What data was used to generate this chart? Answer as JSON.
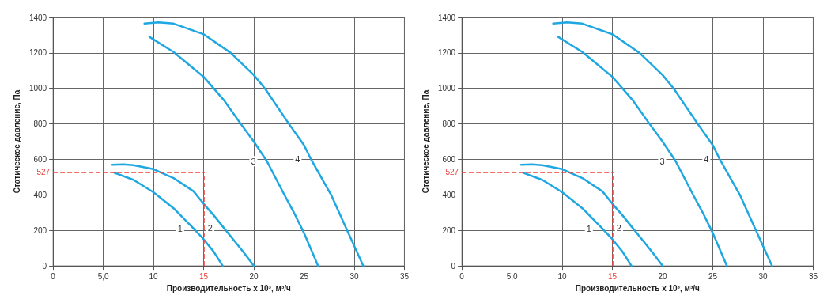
{
  "chart_data": [
    {
      "type": "line",
      "xlabel": "Производительность x 10³, м³/ч",
      "ylabel": "Статическое давление, Па",
      "xlim": [
        0,
        35
      ],
      "ylim": [
        0,
        1400
      ],
      "xticks": [
        0,
        {
          "value": 5,
          "label": "5,0"
        },
        10,
        15,
        20,
        25,
        30,
        35
      ],
      "yticks": [
        0,
        200,
        400,
        600,
        800,
        1000,
        1200,
        1400
      ],
      "grid": true,
      "legend": false,
      "marker": "none",
      "line_style": "solid",
      "series": [
        {
          "name": "1",
          "color": "#1ea7e1",
          "x": [
            6.1,
            8,
            10,
            12,
            14,
            15,
            16,
            16.9
          ],
          "values": [
            525,
            485,
            415,
            325,
            210,
            150,
            80,
            0
          ]
        },
        {
          "name": "2",
          "color": "#1ea7e1",
          "x": [
            5.9,
            7,
            8,
            10,
            12,
            14,
            15,
            16,
            17,
            18,
            19,
            20
          ],
          "values": [
            570,
            572,
            568,
            545,
            495,
            420,
            350,
            285,
            215,
            145,
            75,
            0
          ]
        },
        {
          "name": "3",
          "color": "#1ea7e1",
          "x": [
            9.6,
            12,
            15,
            17,
            18.7,
            20,
            21.3,
            23,
            24,
            25,
            26.4
          ],
          "values": [
            1290,
            1205,
            1065,
            935,
            800,
            700,
            590,
            405,
            300,
            185,
            0
          ]
        },
        {
          "name": "4",
          "color": "#1ea7e1",
          "x": [
            9.1,
            10.5,
            12,
            15,
            17.7,
            20,
            21.1,
            23.5,
            25,
            25.7,
            27.7,
            29.3,
            30.9
          ],
          "values": [
            1365,
            1372,
            1365,
            1305,
            1200,
            1075,
            1000,
            800,
            680,
            600,
            400,
            200,
            0
          ]
        }
      ],
      "ref_lines": [
        {
          "axis": "y",
          "value": 527,
          "label": "527",
          "color": "#e8413c",
          "line_style": "dashed"
        },
        {
          "axis": "x",
          "value": 15,
          "color": "#e8413c",
          "line_style": "dashed"
        }
      ]
    },
    {
      "type": "line",
      "xlabel": "Производительность x 10³, м³/ч",
      "ylabel": "Статическое давление, Па",
      "xlim": [
        0,
        35
      ],
      "ylim": [
        0,
        1400
      ],
      "xticks": [
        0,
        {
          "value": 5,
          "label": "5,0"
        },
        10,
        15,
        20,
        25,
        30,
        35
      ],
      "yticks": [
        0,
        200,
        400,
        600,
        800,
        1000,
        1200,
        1400
      ],
      "grid": true,
      "legend": false,
      "marker": "none",
      "line_style": "solid",
      "series": [
        {
          "name": "1",
          "color": "#1ea7e1",
          "x": [
            6.1,
            8,
            10,
            12,
            14,
            15,
            16,
            16.9
          ],
          "values": [
            525,
            485,
            415,
            325,
            210,
            150,
            80,
            0
          ]
        },
        {
          "name": "2",
          "color": "#1ea7e1",
          "x": [
            5.9,
            7,
            8,
            10,
            12,
            14,
            15,
            16,
            17,
            18,
            19,
            20
          ],
          "values": [
            570,
            572,
            568,
            545,
            495,
            420,
            350,
            285,
            215,
            145,
            75,
            0
          ]
        },
        {
          "name": "3",
          "color": "#1ea7e1",
          "x": [
            9.6,
            12,
            15,
            17,
            18.7,
            20,
            21.3,
            23,
            24,
            25,
            26.4
          ],
          "values": [
            1290,
            1205,
            1065,
            935,
            800,
            700,
            590,
            405,
            300,
            185,
            0
          ]
        },
        {
          "name": "4",
          "color": "#1ea7e1",
          "x": [
            9.1,
            10.5,
            12,
            15,
            17.7,
            20,
            21.1,
            23.5,
            25,
            25.7,
            27.7,
            29.3,
            30.9
          ],
          "values": [
            1365,
            1372,
            1365,
            1305,
            1200,
            1075,
            1000,
            800,
            680,
            600,
            400,
            200,
            0
          ]
        }
      ],
      "ref_lines": [
        {
          "axis": "y",
          "value": 527,
          "label": "527",
          "color": "#e8413c",
          "line_style": "dashed"
        },
        {
          "axis": "x",
          "value": 15,
          "color": "#e8413c",
          "line_style": "dashed"
        }
      ]
    }
  ]
}
